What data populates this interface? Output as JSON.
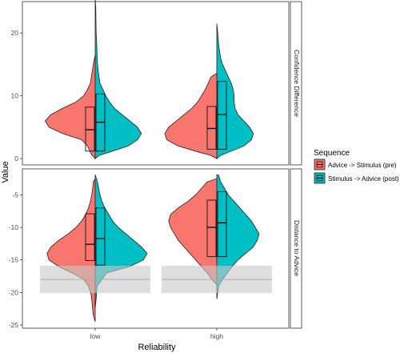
{
  "chart_data": {
    "type": "violin",
    "xlabel": "Reliability",
    "ylabel": "Value",
    "categories": [
      "low",
      "high"
    ],
    "legend": {
      "title": "Sequence",
      "placement": "right",
      "entries": [
        {
          "name": "Advice -> Stimulus (pre)",
          "color": "#F8766D"
        },
        {
          "name": "Stimulus -> Advice (post)",
          "color": "#00BFC4"
        }
      ]
    },
    "panels": [
      {
        "strip": "Confidence Difference",
        "ylim": [
          -1,
          25
        ],
        "yticks": [
          0,
          10,
          20
        ],
        "groups": [
          {
            "category": "low",
            "pre": {
              "profile": [
                [
                  0,
                  0.0
                ],
                [
                  0.5,
                  0.015
                ],
                [
                  1,
                  0.025
                ],
                [
                  2,
                  0.04
                ],
                [
                  3,
                  0.07
                ],
                [
                  4,
                  0.17
                ],
                [
                  5,
                  0.24
                ],
                [
                  6,
                  0.26
                ],
                [
                  7,
                  0.23
                ],
                [
                  8,
                  0.17
                ],
                [
                  9,
                  0.1
                ],
                [
                  10,
                  0.06
                ],
                [
                  11,
                  0.04
                ],
                [
                  12,
                  0.025
                ],
                [
                  13,
                  0.02
                ],
                [
                  14,
                  0.015
                ],
                [
                  15,
                  0.01
                ],
                [
                  16.5,
                  0.0
                ]
              ],
              "box": {
                "q1": 1.2,
                "median": 4.6,
                "q3": 8.2
              }
            },
            "post": {
              "profile": [
                [
                  0,
                  0.0
                ],
                [
                  0.5,
                  0.02
                ],
                [
                  1,
                  0.07
                ],
                [
                  2,
                  0.17
                ],
                [
                  3,
                  0.22
                ],
                [
                  4,
                  0.24
                ],
                [
                  5,
                  0.22
                ],
                [
                  6,
                  0.18
                ],
                [
                  7,
                  0.14
                ],
                [
                  8,
                  0.1
                ],
                [
                  9,
                  0.075
                ],
                [
                  10,
                  0.055
                ],
                [
                  11,
                  0.04
                ],
                [
                  12,
                  0.025
                ],
                [
                  14,
                  0.015
                ],
                [
                  16,
                  0.01
                ],
                [
                  18,
                  0.008
                ],
                [
                  20,
                  0.005
                ],
                [
                  22,
                  0.004
                ],
                [
                  24,
                  0.003
                ],
                [
                  25.5,
                  0.0
                ]
              ],
              "box": {
                "q1": 1.2,
                "median": 5.8,
                "q3": 10.3
              }
            }
          },
          {
            "category": "high",
            "pre": {
              "profile": [
                [
                  0,
                  0.0
                ],
                [
                  0.5,
                  0.03
                ],
                [
                  1,
                  0.09
                ],
                [
                  2,
                  0.2
                ],
                [
                  3,
                  0.26
                ],
                [
                  4,
                  0.27
                ],
                [
                  5,
                  0.25
                ],
                [
                  6,
                  0.21
                ],
                [
                  7,
                  0.17
                ],
                [
                  8,
                  0.13
                ],
                [
                  9,
                  0.1
                ],
                [
                  10,
                  0.08
                ],
                [
                  11,
                  0.06
                ],
                [
                  12,
                  0.045
                ],
                [
                  13,
                  0.03
                ],
                [
                  13.6,
                  0.0
                ]
              ],
              "box": {
                "q1": 1.5,
                "median": 4.8,
                "q3": 8.3
              }
            },
            "post": {
              "profile": [
                [
                  0,
                  0.0
                ],
                [
                  0.5,
                  0.02
                ],
                [
                  1,
                  0.06
                ],
                [
                  2,
                  0.14
                ],
                [
                  3,
                  0.18
                ],
                [
                  4,
                  0.19
                ],
                [
                  5,
                  0.17
                ],
                [
                  6,
                  0.14
                ],
                [
                  7,
                  0.11
                ],
                [
                  8,
                  0.095
                ],
                [
                  9,
                  0.09
                ],
                [
                  10,
                  0.09
                ],
                [
                  11,
                  0.085
                ],
                [
                  12,
                  0.075
                ],
                [
                  13,
                  0.06
                ],
                [
                  14,
                  0.045
                ],
                [
                  15,
                  0.03
                ],
                [
                  16,
                  0.02
                ],
                [
                  18,
                  0.01
                ],
                [
                  20,
                  0.005
                ],
                [
                  21.5,
                  0.0
                ]
              ],
              "box": {
                "q1": 1.5,
                "median": 7.0,
                "q3": 12.3
              }
            }
          }
        ]
      },
      {
        "strip": "Distance to Advice",
        "ylim": [
          -25.5,
          -1
        ],
        "yticks": [
          -25,
          -20,
          -15,
          -10,
          -5
        ],
        "reference_band": {
          "y": -18,
          "ymin": -20.1,
          "ymax": -15.9
        },
        "groups": [
          {
            "category": "low",
            "pre": {
              "profile": [
                [
                  -24.5,
                  0.0
                ],
                [
                  -23.5,
                  0.01
                ],
                [
                  -22,
                  0.015
                ],
                [
                  -20.5,
                  0.02
                ],
                [
                  -19,
                  0.035
                ],
                [
                  -18,
                  0.06
                ],
                [
                  -17,
                  0.12
                ],
                [
                  -16,
                  0.19
                ],
                [
                  -15,
                  0.24
                ],
                [
                  -14,
                  0.25
                ],
                [
                  -13,
                  0.23
                ],
                [
                  -12,
                  0.19
                ],
                [
                  -11,
                  0.14
                ],
                [
                  -10,
                  0.1
                ],
                [
                  -9,
                  0.07
                ],
                [
                  -8,
                  0.05
                ],
                [
                  -7,
                  0.035
                ],
                [
                  -6,
                  0.025
                ],
                [
                  -5,
                  0.018
                ],
                [
                  -4,
                  0.013
                ],
                [
                  -3,
                  0.01
                ],
                [
                  -2.5,
                  0.0
                ]
              ],
              "box": {
                "q1": -15.1,
                "median": -12.6,
                "q3": -7.9
              }
            },
            "post": {
              "profile": [
                [
                  -22.4,
                  0.0
                ],
                [
                  -21,
                  0.005
                ],
                [
                  -19,
                  0.01
                ],
                [
                  -17,
                  0.06
                ],
                [
                  -16,
                  0.18
                ],
                [
                  -15,
                  0.25
                ],
                [
                  -14,
                  0.27
                ],
                [
                  -13,
                  0.24
                ],
                [
                  -12,
                  0.2
                ],
                [
                  -11,
                  0.16
                ],
                [
                  -10,
                  0.12
                ],
                [
                  -9,
                  0.09
                ],
                [
                  -8,
                  0.07
                ],
                [
                  -7,
                  0.05
                ],
                [
                  -6,
                  0.035
                ],
                [
                  -5,
                  0.025
                ],
                [
                  -4,
                  0.018
                ],
                [
                  -3,
                  0.012
                ],
                [
                  -1.9,
                  0.0
                ]
              ],
              "box": {
                "q1": -15.8,
                "median": -11.7,
                "q3": -7.0
              }
            }
          },
          {
            "category": "high",
            "pre": {
              "profile": [
                [
                  -18.8,
                  0.0
                ],
                [
                  -18,
                  0.025
                ],
                [
                  -17,
                  0.05
                ],
                [
                  -16,
                  0.08
                ],
                [
                  -15,
                  0.11
                ],
                [
                  -14,
                  0.14
                ],
                [
                  -13,
                  0.17
                ],
                [
                  -12,
                  0.2
                ],
                [
                  -11,
                  0.22
                ],
                [
                  -10,
                  0.24
                ],
                [
                  -9,
                  0.25
                ],
                [
                  -8,
                  0.24
                ],
                [
                  -7,
                  0.2
                ],
                [
                  -6,
                  0.15
                ],
                [
                  -5,
                  0.11
                ],
                [
                  -4,
                  0.08
                ],
                [
                  -3,
                  0.05
                ],
                [
                  -2.5,
                  0.0
                ]
              ],
              "box": {
                "q1": -14.5,
                "median": -10.0,
                "q3": -5.8
              }
            },
            "post": {
              "profile": [
                [
                  -21,
                  0.0
                ],
                [
                  -20,
                  0.005
                ],
                [
                  -19,
                  0.01
                ],
                [
                  -18,
                  0.03
                ],
                [
                  -17,
                  0.055
                ],
                [
                  -16,
                  0.08
                ],
                [
                  -15,
                  0.11
                ],
                [
                  -14,
                  0.15
                ],
                [
                  -13,
                  0.19
                ],
                [
                  -12,
                  0.21
                ],
                [
                  -11,
                  0.22
                ],
                [
                  -10,
                  0.2
                ],
                [
                  -9,
                  0.18
                ],
                [
                  -8,
                  0.15
                ],
                [
                  -7,
                  0.12
                ],
                [
                  -6,
                  0.09
                ],
                [
                  -5,
                  0.06
                ],
                [
                  -4,
                  0.04
                ],
                [
                  -3,
                  0.02
                ],
                [
                  -2,
                  0.01
                ],
                [
                  -1.9,
                  0.0
                ]
              ],
              "box": {
                "q1": -14.5,
                "median": -9.3,
                "q3": -4.5
              }
            }
          }
        ]
      }
    ],
    "grid": false
  }
}
